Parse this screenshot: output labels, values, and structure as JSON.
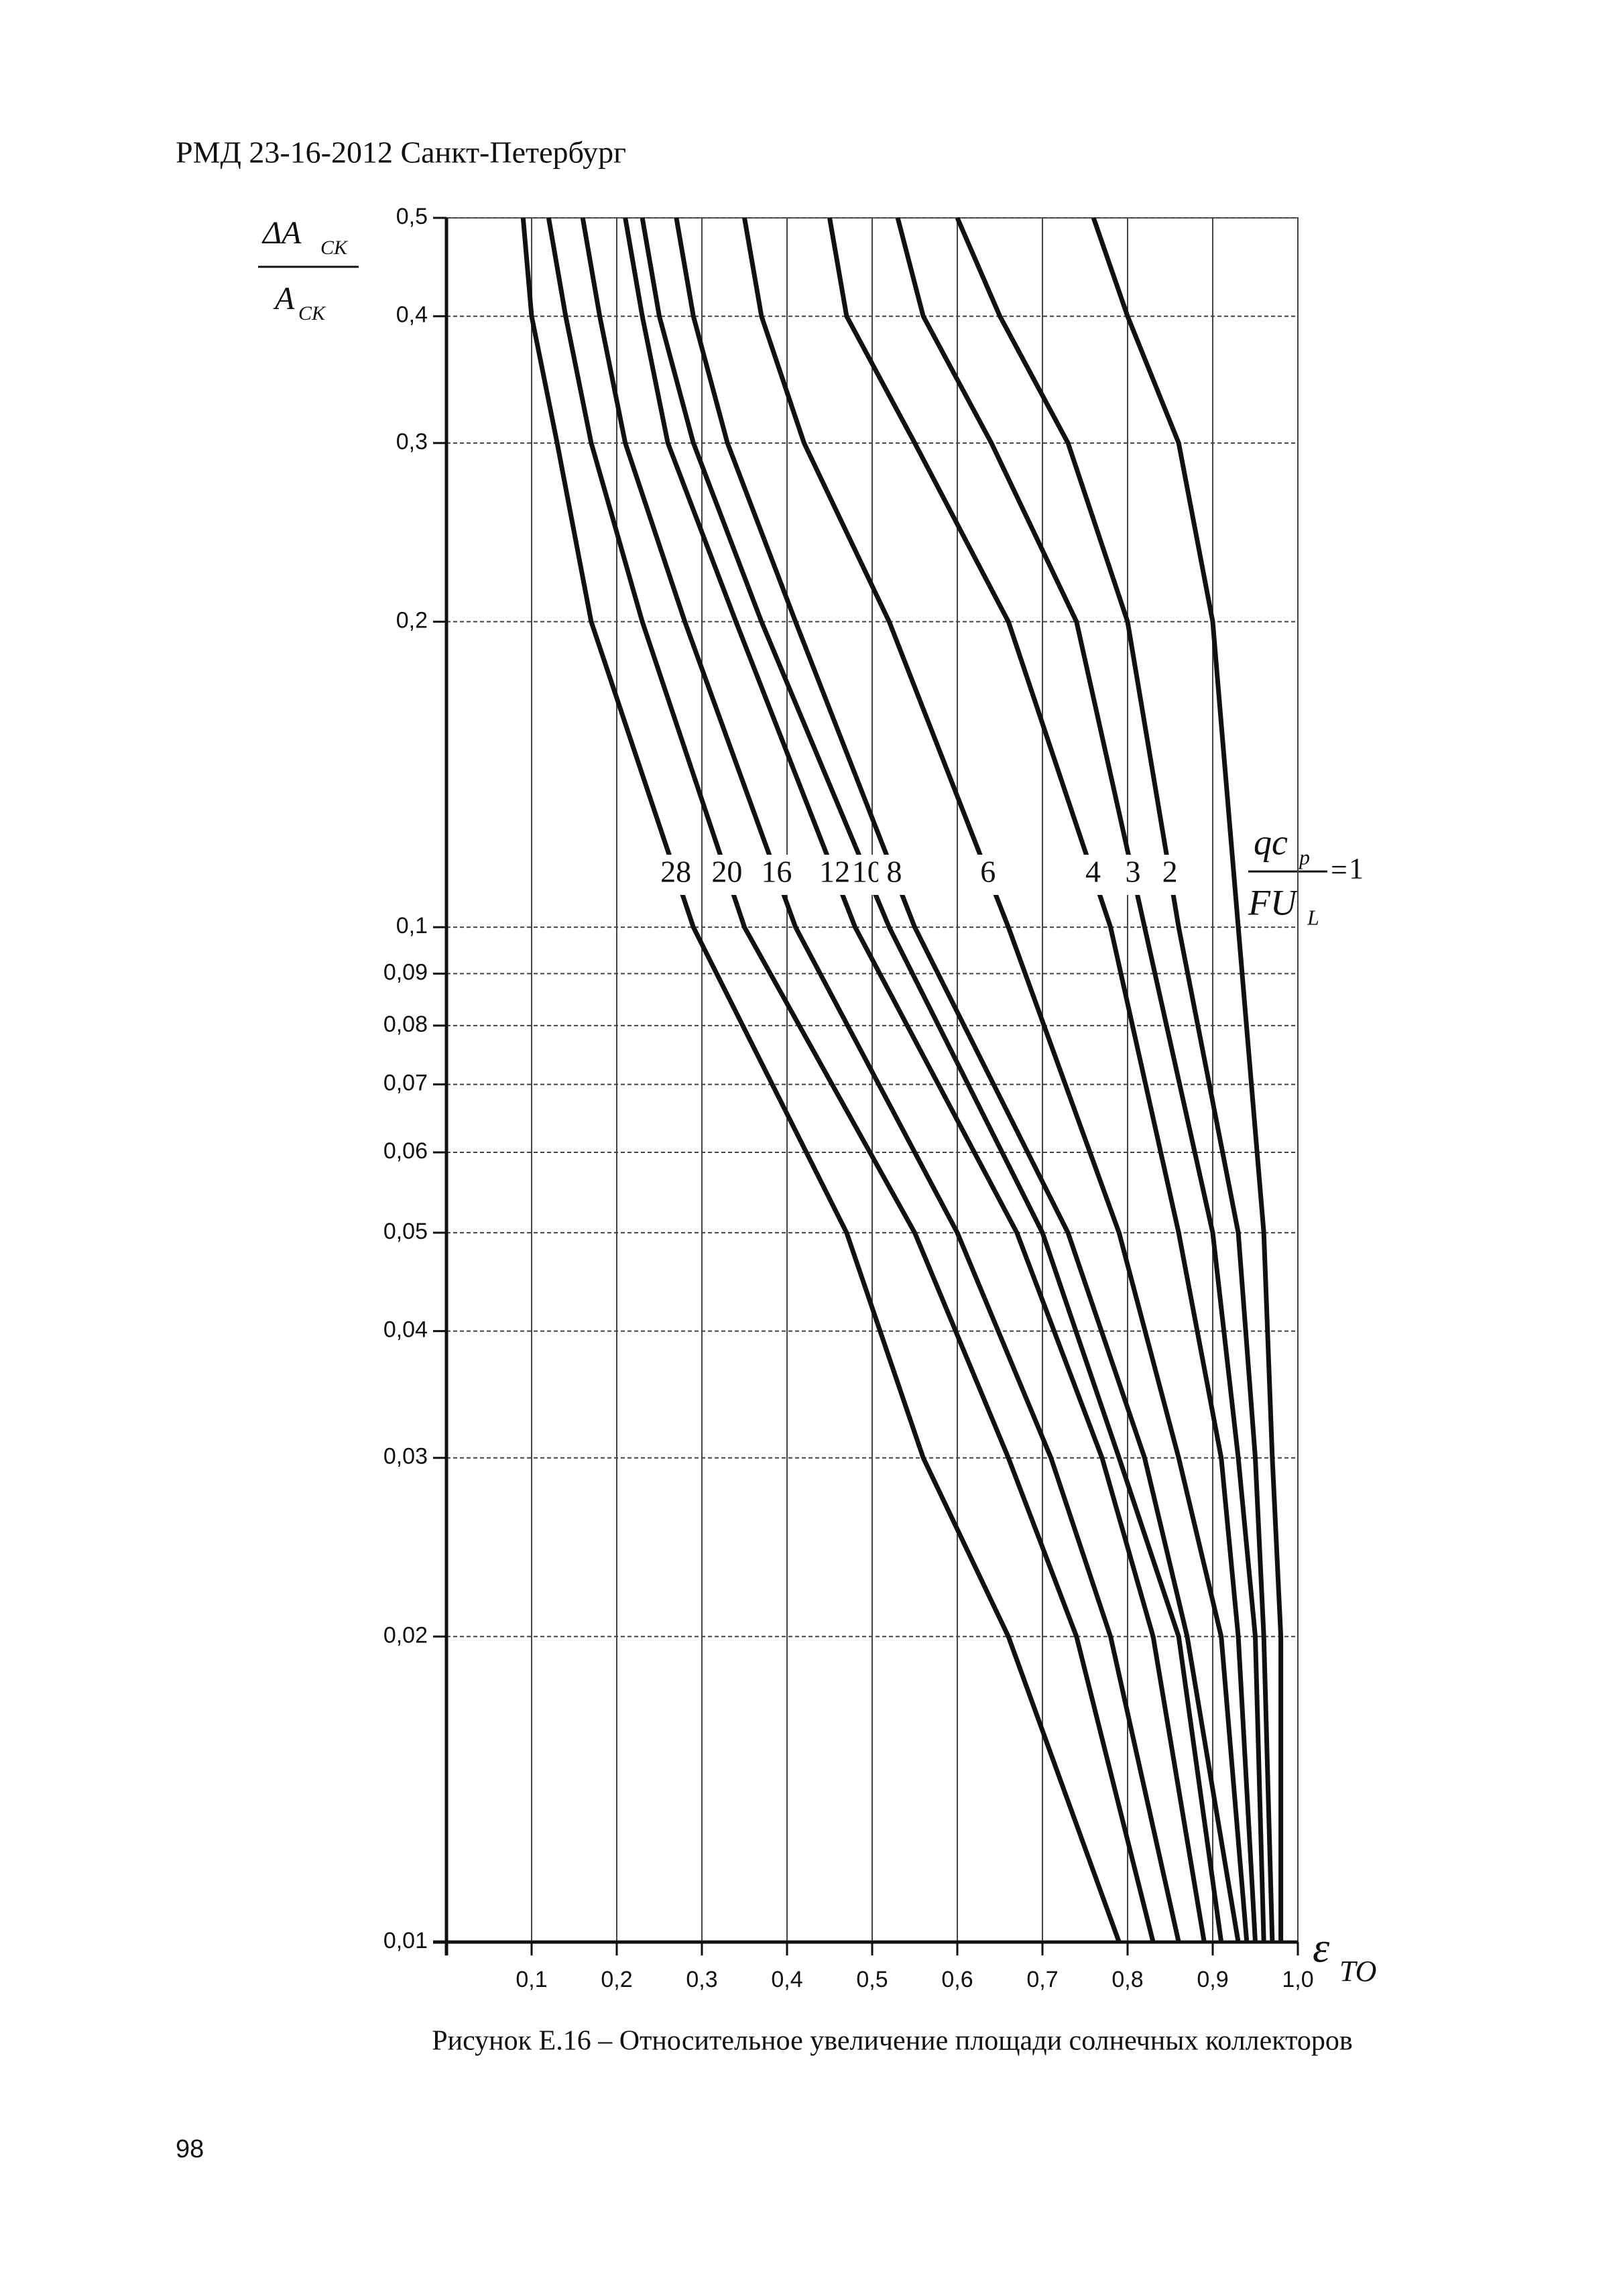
{
  "header": "РМД 23-16-2012 Санкт-Петербург",
  "chart_data": {
    "type": "line",
    "y_label": {
      "numerator": "ΔA",
      "numerator_sub": "CK",
      "denominator": "A",
      "denominator_sub": "CK"
    },
    "x_label": {
      "symbol": "ε",
      "sub": "TO"
    },
    "parameter_label": {
      "numerator": "qc",
      "numerator_sub": "p",
      "denominator": "FU",
      "denominator_sub": "L",
      "equals": "="
    },
    "log_y": true,
    "grid": true,
    "color": "#111111",
    "xlim": [
      0,
      1.0
    ],
    "ylim": [
      0.01,
      0.5
    ],
    "xticks": [
      {
        "value": 0.1,
        "label": "0,1"
      },
      {
        "value": 0.2,
        "label": "0,2"
      },
      {
        "value": 0.3,
        "label": "0,3"
      },
      {
        "value": 0.4,
        "label": "0,4"
      },
      {
        "value": 0.5,
        "label": "0,5"
      },
      {
        "value": 0.6,
        "label": "0,6"
      },
      {
        "value": 0.7,
        "label": "0,7"
      },
      {
        "value": 0.8,
        "label": "0,8"
      },
      {
        "value": 0.9,
        "label": "0,9"
      },
      {
        "value": 1.0,
        "label": "1,0"
      }
    ],
    "yticks": [
      {
        "value": 0.5,
        "label": "0,5"
      },
      {
        "value": 0.4,
        "label": "0,4"
      },
      {
        "value": 0.3,
        "label": "0,3"
      },
      {
        "value": 0.2,
        "label": "0,2"
      },
      {
        "value": 0.1,
        "label": "0,1"
      },
      {
        "value": 0.09,
        "label": "0,09"
      },
      {
        "value": 0.08,
        "label": "0,08"
      },
      {
        "value": 0.07,
        "label": "0,07"
      },
      {
        "value": 0.06,
        "label": "0,06"
      },
      {
        "value": 0.05,
        "label": "0,05"
      },
      {
        "value": 0.04,
        "label": "0,04"
      },
      {
        "value": 0.03,
        "label": "0,03"
      },
      {
        "value": 0.02,
        "label": "0,02"
      },
      {
        "value": 0.01,
        "label": "0,01"
      }
    ],
    "y": [
      0.5,
      0.4,
      0.3,
      0.2,
      0.1,
      0.05,
      0.03,
      0.02,
      0.01
    ],
    "series": [
      {
        "name": "28",
        "x": [
          0.09,
          0.1,
          0.13,
          0.17,
          0.29,
          0.47,
          0.56,
          0.66,
          0.79
        ]
      },
      {
        "name": "20",
        "x": [
          0.12,
          0.14,
          0.17,
          0.23,
          0.35,
          0.55,
          0.66,
          0.74,
          0.83
        ]
      },
      {
        "name": "16",
        "x": [
          0.16,
          0.18,
          0.21,
          0.28,
          0.41,
          0.6,
          0.71,
          0.78,
          0.86
        ]
      },
      {
        "name": "12",
        "x": [
          0.21,
          0.23,
          0.26,
          0.34,
          0.48,
          0.67,
          0.77,
          0.83,
          0.89
        ]
      },
      {
        "name": "10",
        "x": [
          0.23,
          0.25,
          0.29,
          0.37,
          0.52,
          0.7,
          0.79,
          0.86,
          0.91
        ]
      },
      {
        "name": "8",
        "x": [
          0.27,
          0.29,
          0.33,
          0.41,
          0.55,
          0.73,
          0.82,
          0.87,
          0.93
        ]
      },
      {
        "name": "6",
        "x": [
          0.35,
          0.37,
          0.42,
          0.52,
          0.66,
          0.79,
          0.86,
          0.91,
          0.94
        ]
      },
      {
        "name": "4",
        "x": [
          0.45,
          0.47,
          0.55,
          0.66,
          0.78,
          0.86,
          0.91,
          0.93,
          0.95
        ]
      },
      {
        "name": "3",
        "x": [
          0.53,
          0.56,
          0.64,
          0.74,
          0.82,
          0.9,
          0.93,
          0.95,
          0.96
        ]
      },
      {
        "name": "2",
        "x": [
          0.6,
          0.65,
          0.73,
          0.8,
          0.86,
          0.93,
          0.95,
          0.96,
          0.97
        ]
      },
      {
        "name": "1",
        "x": [
          0.76,
          0.8,
          0.86,
          0.9,
          0.93,
          0.96,
          0.97,
          0.98,
          0.98
        ]
      }
    ]
  },
  "caption": "Рисунок Е.16 – Относительное увеличение площади солнечных коллекторов",
  "page_number": "98"
}
